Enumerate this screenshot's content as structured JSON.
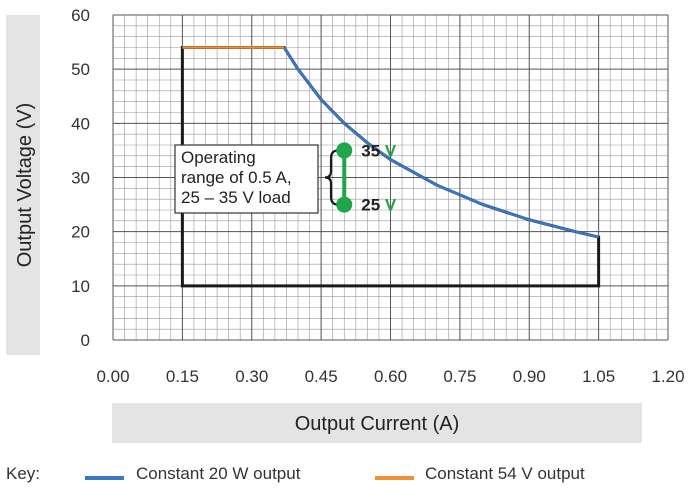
{
  "chart_data": {
    "type": "line",
    "xlabel": "Output Current (A)",
    "ylabel": "Output Voltage (V)",
    "xlim": [
      0,
      1.2
    ],
    "ylim": [
      0,
      60
    ],
    "x_ticks": [
      "0.00",
      "0.15",
      "0.30",
      "0.45",
      "0.60",
      "0.75",
      "0.90",
      "1.05",
      "1.20"
    ],
    "y_ticks": [
      "0",
      "10",
      "20",
      "30",
      "40",
      "50",
      "60"
    ],
    "grid": true,
    "legend_position": "bottom",
    "key_label": "Key:",
    "series": [
      {
        "name": "Constant 20 W output",
        "color": "#3a78c2",
        "x": [
          0.37,
          0.4,
          0.45,
          0.5,
          0.55,
          0.6,
          0.7,
          0.8,
          0.9,
          1.0,
          1.05
        ],
        "y": [
          54.0,
          50.0,
          44.4,
          40.0,
          36.4,
          33.3,
          28.6,
          25.0,
          22.2,
          20.0,
          19.0
        ]
      },
      {
        "name": "Constant 54 V output",
        "color": "#f0913a",
        "x": [
          0.15,
          0.37
        ],
        "y": [
          54.0,
          54.0
        ]
      }
    ],
    "operating_region": {
      "color": "#1a1a1a",
      "x": [
        0.15,
        0.15,
        0.37,
        0.4,
        0.45,
        0.5,
        0.55,
        0.6,
        0.7,
        0.8,
        0.9,
        1.0,
        1.05,
        1.05
      ],
      "y": [
        10,
        54,
        54,
        50.0,
        44.4,
        40.0,
        36.4,
        33.3,
        28.6,
        25.0,
        22.2,
        20.0,
        19.0,
        10
      ]
    },
    "annotation": {
      "lines": [
        "Operating",
        "range of 0.5 A,",
        "25 – 35 V load"
      ],
      "current": 0.5,
      "v_low": 25,
      "v_high": 35,
      "high_value": "35",
      "low_value": "25",
      "unit": "V",
      "unit_color": "#2aa14a",
      "marker_color": "#1fa64a"
    }
  }
}
